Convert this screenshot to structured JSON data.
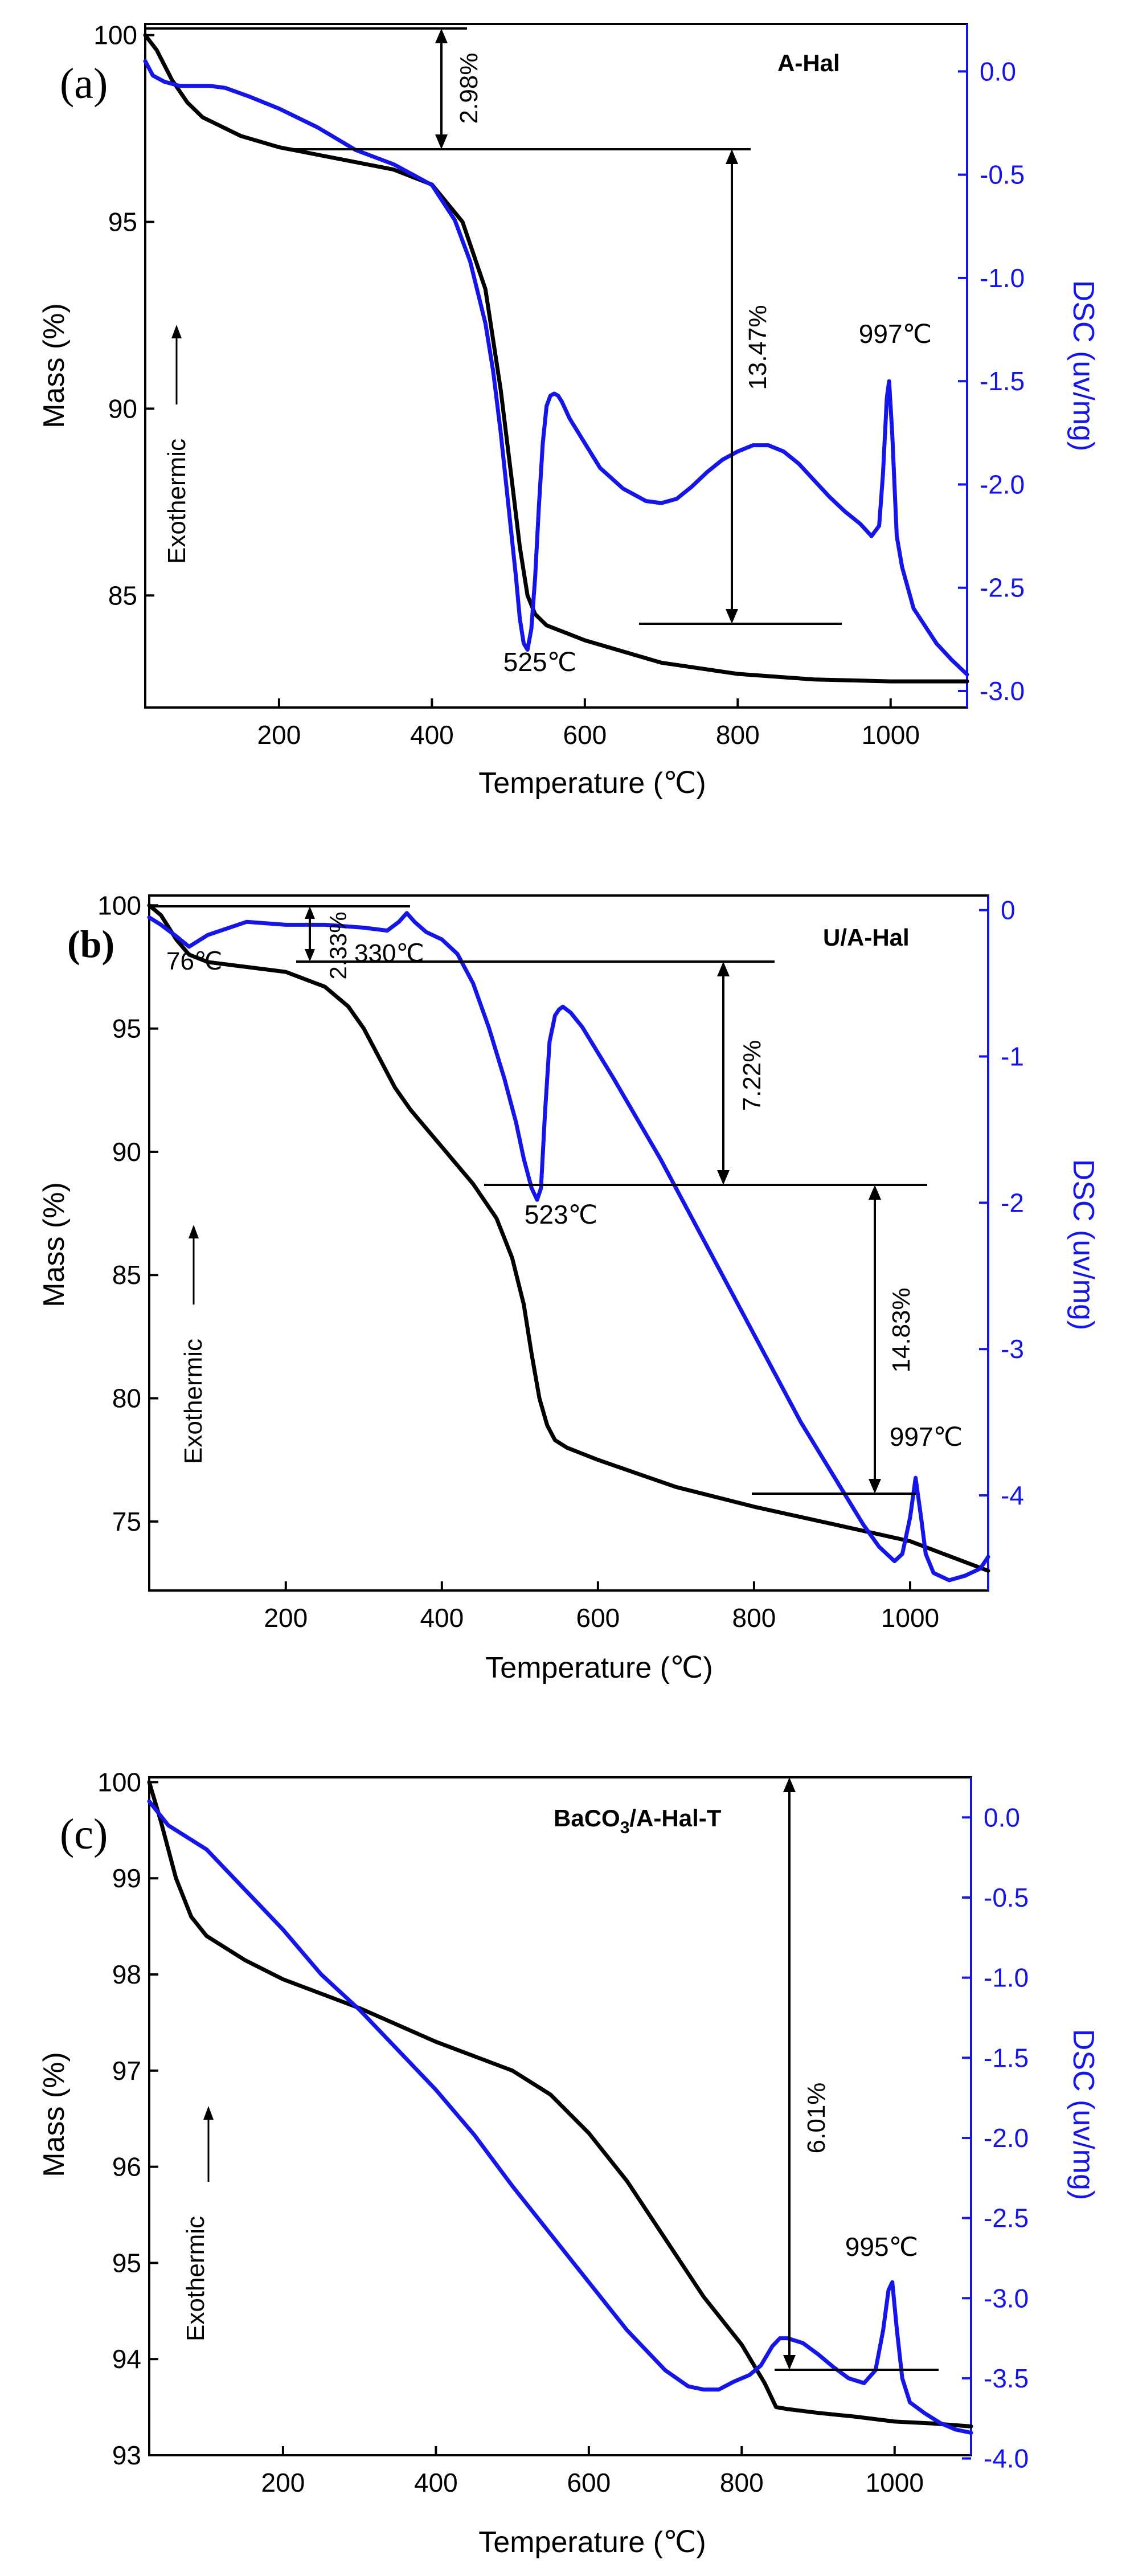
{
  "chart_data": [
    {
      "type": "line",
      "panel_label": "(a)",
      "title": "A-Hal",
      "xlabel": "Temperature (℃)",
      "ylabel": "Mass (%)",
      "y2label": "DSC (uv/mg)",
      "exo_label": "Exothermic",
      "xlim": [
        25,
        1100
      ],
      "ylim": [
        82.0,
        100.3
      ],
      "y2lim": [
        -3.08,
        0.23
      ],
      "xticks": [
        200,
        400,
        600,
        800,
        1000
      ],
      "yticks": [
        85,
        90,
        95,
        100
      ],
      "y2ticks": [
        0.0,
        -0.5,
        -1.0,
        -1.5,
        -2.0,
        -2.5,
        -3.0
      ],
      "y2tick_labels": [
        "0.0",
        "-0.5",
        "-1.0",
        "-1.5",
        "-2.0",
        "-2.5",
        "-3.0"
      ],
      "series": [
        {
          "name": "Mass",
          "axis": "left",
          "color": "#000000",
          "x": [
            25,
            40,
            60,
            80,
            100,
            150,
            200,
            250,
            300,
            350,
            400,
            440,
            470,
            490,
            505,
            515,
            525,
            535,
            550,
            600,
            700,
            800,
            900,
            1000,
            1100
          ],
          "y": [
            100.0,
            99.6,
            98.8,
            98.2,
            97.8,
            97.3,
            97.0,
            96.8,
            96.6,
            96.4,
            96.0,
            95.0,
            93.2,
            90.5,
            88.0,
            86.3,
            85.0,
            84.5,
            84.2,
            83.8,
            83.2,
            82.9,
            82.75,
            82.7,
            82.7
          ]
        },
        {
          "name": "DSC",
          "axis": "right",
          "color": "#1515e8",
          "x": [
            25,
            35,
            50,
            70,
            90,
            110,
            130,
            160,
            200,
            250,
            300,
            350,
            400,
            430,
            450,
            470,
            480,
            490,
            500,
            510,
            515,
            520,
            525,
            530,
            535,
            540,
            545,
            550,
            555,
            560,
            565,
            570,
            580,
            600,
            620,
            650,
            680,
            700,
            720,
            740,
            760,
            780,
            800,
            820,
            840,
            860,
            880,
            900,
            920,
            940,
            960,
            975,
            985,
            990,
            995,
            998,
            1002,
            1008,
            1015,
            1030,
            1060,
            1080,
            1100
          ],
          "y": [
            0.05,
            -0.02,
            -0.05,
            -0.07,
            -0.07,
            -0.07,
            -0.08,
            -0.12,
            -0.18,
            -0.27,
            -0.38,
            -0.45,
            -0.55,
            -0.72,
            -0.92,
            -1.22,
            -1.45,
            -1.75,
            -2.1,
            -2.45,
            -2.65,
            -2.77,
            -2.8,
            -2.7,
            -2.45,
            -2.1,
            -1.8,
            -1.62,
            -1.57,
            -1.56,
            -1.57,
            -1.6,
            -1.68,
            -1.8,
            -1.92,
            -2.02,
            -2.08,
            -2.09,
            -2.07,
            -2.01,
            -1.94,
            -1.88,
            -1.84,
            -1.81,
            -1.81,
            -1.84,
            -1.9,
            -1.98,
            -2.06,
            -2.13,
            -2.19,
            -2.25,
            -2.2,
            -1.95,
            -1.58,
            -1.5,
            -1.75,
            -2.25,
            -2.4,
            -2.6,
            -2.77,
            -2.85,
            -2.92
          ]
        }
      ],
      "annotations": [
        {
          "text": "2.98%",
          "kind": "step"
        },
        {
          "text": "13.47%",
          "kind": "step"
        },
        {
          "text": "997℃",
          "kind": "peak"
        },
        {
          "text": "525℃",
          "kind": "peak"
        }
      ]
    },
    {
      "type": "line",
      "panel_label": "(b)",
      "title": "U/A-Hal",
      "xlabel": "Temperature (℃)",
      "ylabel": "Mass (%)",
      "y2label": "DSC (uv/mg)",
      "exo_label": "Exothermic",
      "xlim": [
        25,
        1100
      ],
      "ylim": [
        72.2,
        100.4
      ],
      "y2lim": [
        -4.65,
        0.1
      ],
      "xticks": [
        200,
        400,
        600,
        800,
        1000
      ],
      "yticks": [
        75,
        80,
        85,
        90,
        95,
        100
      ],
      "y2ticks": [
        0,
        -1,
        -2,
        -3,
        -4
      ],
      "y2tick_labels": [
        "0",
        "-1",
        "-2",
        "-3",
        "-4"
      ],
      "series": [
        {
          "name": "Mass",
          "axis": "left",
          "color": "#000000",
          "x": [
            25,
            40,
            60,
            76,
            100,
            150,
            200,
            250,
            280,
            300,
            320,
            340,
            360,
            400,
            440,
            470,
            490,
            505,
            515,
            525,
            535,
            545,
            560,
            600,
            700,
            800,
            900,
            1000,
            1100
          ],
          "y": [
            100.0,
            99.6,
            98.6,
            98.0,
            97.7,
            97.5,
            97.3,
            96.7,
            95.9,
            95.0,
            93.8,
            92.6,
            91.7,
            90.2,
            88.7,
            87.3,
            85.7,
            83.8,
            81.8,
            80.0,
            78.9,
            78.3,
            78.0,
            77.5,
            76.4,
            75.6,
            74.9,
            74.2,
            73.0
          ]
        },
        {
          "name": "DSC",
          "axis": "right",
          "color": "#1515e8",
          "x": [
            25,
            40,
            60,
            76,
            100,
            150,
            200,
            250,
            300,
            330,
            345,
            355,
            365,
            380,
            400,
            420,
            440,
            460,
            480,
            495,
            505,
            515,
            522,
            527,
            532,
            538,
            545,
            550,
            555,
            565,
            580,
            620,
            680,
            740,
            800,
            860,
            900,
            940,
            960,
            980,
            990,
            1000,
            1007,
            1014,
            1020,
            1030,
            1050,
            1070,
            1090,
            1100
          ],
          "y": [
            -0.05,
            -0.1,
            -0.18,
            -0.25,
            -0.17,
            -0.08,
            -0.1,
            -0.1,
            -0.12,
            -0.14,
            -0.08,
            -0.02,
            -0.08,
            -0.15,
            -0.2,
            -0.3,
            -0.5,
            -0.8,
            -1.15,
            -1.45,
            -1.7,
            -1.9,
            -1.98,
            -1.9,
            -1.4,
            -0.9,
            -0.72,
            -0.68,
            -0.66,
            -0.7,
            -0.8,
            -1.15,
            -1.7,
            -2.3,
            -2.9,
            -3.5,
            -3.85,
            -4.2,
            -4.35,
            -4.45,
            -4.4,
            -4.15,
            -3.88,
            -4.15,
            -4.4,
            -4.53,
            -4.58,
            -4.55,
            -4.5,
            -4.42
          ]
        }
      ],
      "annotations": [
        {
          "text": "2.33%",
          "kind": "step"
        },
        {
          "text": "7.22%",
          "kind": "step"
        },
        {
          "text": "14.83%",
          "kind": "step"
        },
        {
          "text": "76℃",
          "kind": "peak"
        },
        {
          "text": "330℃",
          "kind": "peak"
        },
        {
          "text": "523℃",
          "kind": "peak"
        },
        {
          "text": "997℃",
          "kind": "peak"
        }
      ]
    },
    {
      "type": "line",
      "panel_label": "(c)",
      "title_main": "BaCO",
      "title_sub": "3",
      "title_rest": "/A-Hal-T",
      "xlabel": "Temperature (℃)",
      "ylabel": "Mass (%)",
      "y2label": "DSC (uv/mg)",
      "exo_label": "Exothermic",
      "xlim": [
        25,
        1100
      ],
      "ylim": [
        93.0,
        100.05
      ],
      "y2lim": [
        -3.98,
        0.25
      ],
      "xticks": [
        200,
        400,
        600,
        800,
        1000
      ],
      "yticks": [
        93,
        94,
        95,
        96,
        97,
        98,
        99,
        100
      ],
      "y2ticks": [
        0.0,
        -0.5,
        -1.0,
        -1.5,
        -2.0,
        -2.5,
        -3.0,
        -3.5,
        -4.0
      ],
      "y2tick_labels": [
        "0.0",
        "-0.5",
        "-1.0",
        "-1.5",
        "-2.0",
        "-2.5",
        "-3.0",
        "-3.5",
        "-4.0"
      ],
      "series": [
        {
          "name": "Mass",
          "axis": "left",
          "color": "#000000",
          "x": [
            25,
            40,
            60,
            80,
            100,
            150,
            200,
            300,
            400,
            450,
            500,
            550,
            600,
            650,
            700,
            750,
            800,
            830,
            845,
            860,
            900,
            950,
            1000,
            1050,
            1100
          ],
          "y": [
            100.0,
            99.6,
            99.0,
            98.6,
            98.4,
            98.15,
            97.95,
            97.65,
            97.3,
            97.15,
            97.0,
            96.75,
            96.35,
            95.85,
            95.25,
            94.65,
            94.15,
            93.75,
            93.5,
            93.48,
            93.44,
            93.4,
            93.35,
            93.33,
            93.3
          ]
        },
        {
          "name": "DSC",
          "axis": "right",
          "color": "#1515e8",
          "x": [
            25,
            50,
            100,
            150,
            200,
            250,
            300,
            350,
            400,
            450,
            500,
            550,
            600,
            650,
            700,
            730,
            750,
            770,
            790,
            810,
            825,
            840,
            850,
            860,
            880,
            900,
            920,
            940,
            960,
            975,
            985,
            992,
            997,
            1003,
            1010,
            1020,
            1040,
            1060,
            1080,
            1100
          ],
          "y": [
            0.1,
            -0.05,
            -0.2,
            -0.45,
            -0.7,
            -0.98,
            -1.2,
            -1.45,
            -1.7,
            -1.98,
            -2.3,
            -2.6,
            -2.9,
            -3.2,
            -3.45,
            -3.55,
            -3.57,
            -3.57,
            -3.52,
            -3.48,
            -3.42,
            -3.3,
            -3.25,
            -3.25,
            -3.28,
            -3.35,
            -3.43,
            -3.5,
            -3.53,
            -3.45,
            -3.2,
            -2.95,
            -2.9,
            -3.2,
            -3.5,
            -3.65,
            -3.72,
            -3.78,
            -3.82,
            -3.84
          ]
        }
      ],
      "annotations": [
        {
          "text": "6.01%",
          "kind": "step"
        },
        {
          "text": "995℃",
          "kind": "peak"
        }
      ]
    }
  ]
}
